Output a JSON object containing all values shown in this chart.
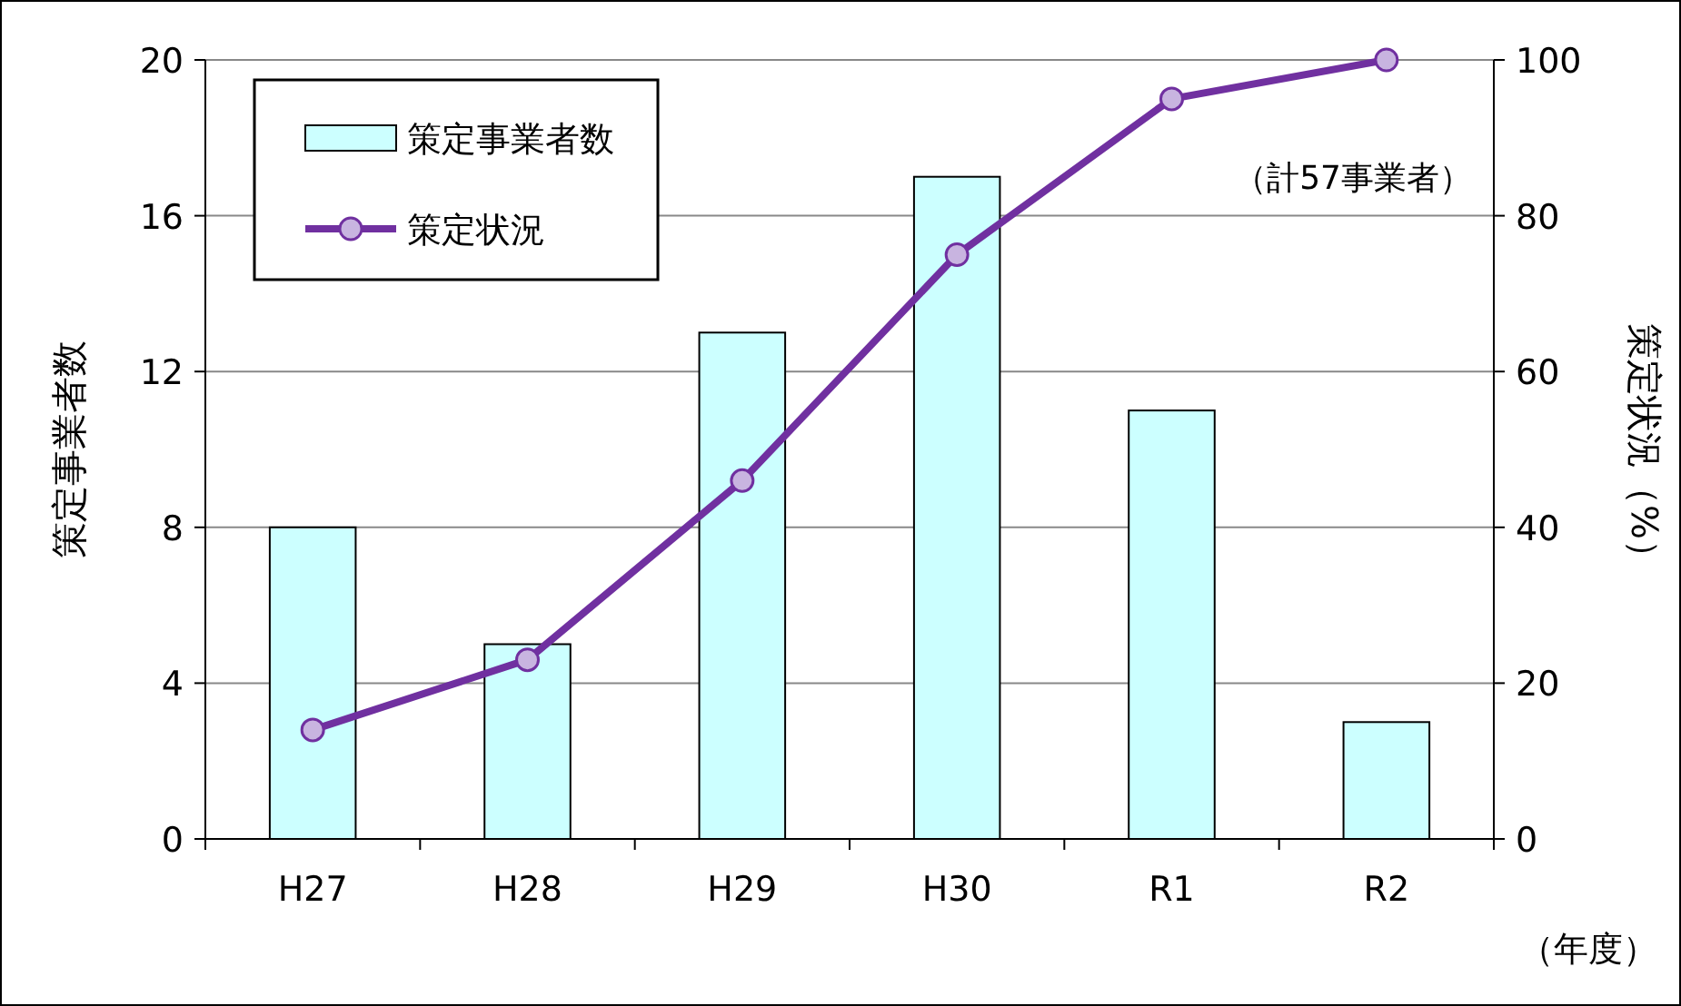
{
  "chart_data": {
    "type": "bar",
    "categories": [
      "H27",
      "H28",
      "H29",
      "H30",
      "R1",
      "R2"
    ],
    "series": [
      {
        "name": "策定事業者数",
        "color": "#ccffff",
        "values": [
          8,
          5,
          13,
          17,
          11,
          3
        ]
      },
      {
        "name": "策定状況",
        "type": "line",
        "axis": "y2",
        "color": "#7030a0",
        "values": [
          14,
          23,
          46,
          75,
          95,
          100
        ]
      }
    ],
    "ylabel": "策定事業者数",
    "y2label": "策定状況（%）",
    "xlabel": "（年度）",
    "annotations": [
      "（計57事業者）"
    ],
    "ylim": [
      0,
      20
    ],
    "yticks": [
      0,
      4,
      8,
      12,
      16,
      20
    ],
    "y2lim": [
      0,
      100
    ],
    "y2ticks": [
      0,
      20,
      40,
      60,
      80,
      100
    ],
    "grid": "y",
    "legend": "top left",
    "marker": "circle",
    "line_style": "solid"
  }
}
